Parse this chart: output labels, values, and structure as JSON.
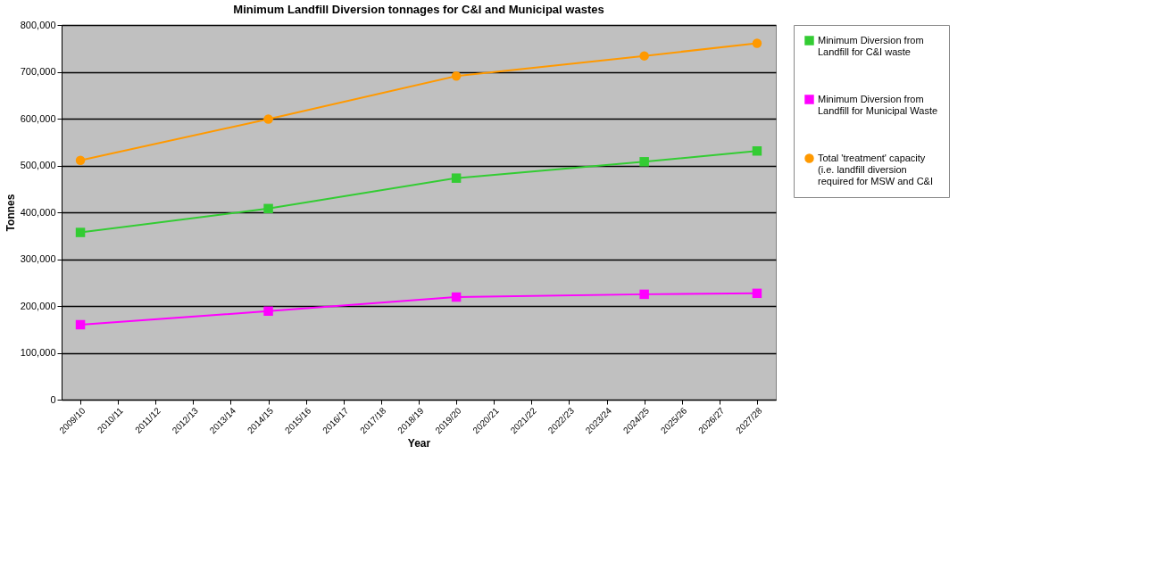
{
  "chart_data": {
    "type": "line",
    "title": "Minimum Landfill Diversion tonnages for C&I and Municipal wastes",
    "xlabel": "Year",
    "ylabel": "Tonnes",
    "categories": [
      "2009/10",
      "2010/11",
      "2011/12",
      "2012/13",
      "2013/14",
      "2014/15",
      "2015/16",
      "2016/17",
      "2017/18",
      "2018/19",
      "2019/20",
      "2020/21",
      "2021/22",
      "2022/23",
      "2023/24",
      "2024/25",
      "2025/26",
      "2026/27",
      "2027/28"
    ],
    "series": [
      {
        "name": "Minimum Diversion from Landfill for C&I waste",
        "color": "#33cc33",
        "marker": "square",
        "values": [
          357000,
          null,
          null,
          null,
          null,
          408000,
          null,
          null,
          null,
          null,
          473000,
          null,
          null,
          null,
          null,
          508000,
          null,
          null,
          531000
        ]
      },
      {
        "name": "Minimum Diversion from Landfill for Municipal Waste",
        "color": "#ff00ff",
        "marker": "square",
        "values": [
          160000,
          null,
          null,
          null,
          null,
          189000,
          null,
          null,
          null,
          null,
          219000,
          null,
          null,
          null,
          null,
          225000,
          null,
          null,
          227000
        ]
      },
      {
        "name": "Total 'treatment' capacity (i.e. landfill diversion required for MSW and C&I",
        "color": "#ff9900",
        "marker": "circle",
        "values": [
          511000,
          null,
          null,
          null,
          null,
          599000,
          null,
          null,
          null,
          null,
          691000,
          null,
          null,
          null,
          null,
          734000,
          null,
          null,
          761000
        ]
      }
    ],
    "ylim": [
      0,
      800000
    ],
    "yticks": [
      {
        "value": 0,
        "label": "0"
      },
      {
        "value": 100000,
        "label": "100,000"
      },
      {
        "value": 200000,
        "label": "200,000"
      },
      {
        "value": 300000,
        "label": "300,000"
      },
      {
        "value": 400000,
        "label": "400,000"
      },
      {
        "value": 500000,
        "label": "500,000"
      },
      {
        "value": 600000,
        "label": "600,000"
      },
      {
        "value": 700000,
        "label": "700,000"
      },
      {
        "value": 800000,
        "label": "800,000"
      }
    ],
    "grid": "y",
    "legend": "right",
    "line_style": "solid"
  }
}
